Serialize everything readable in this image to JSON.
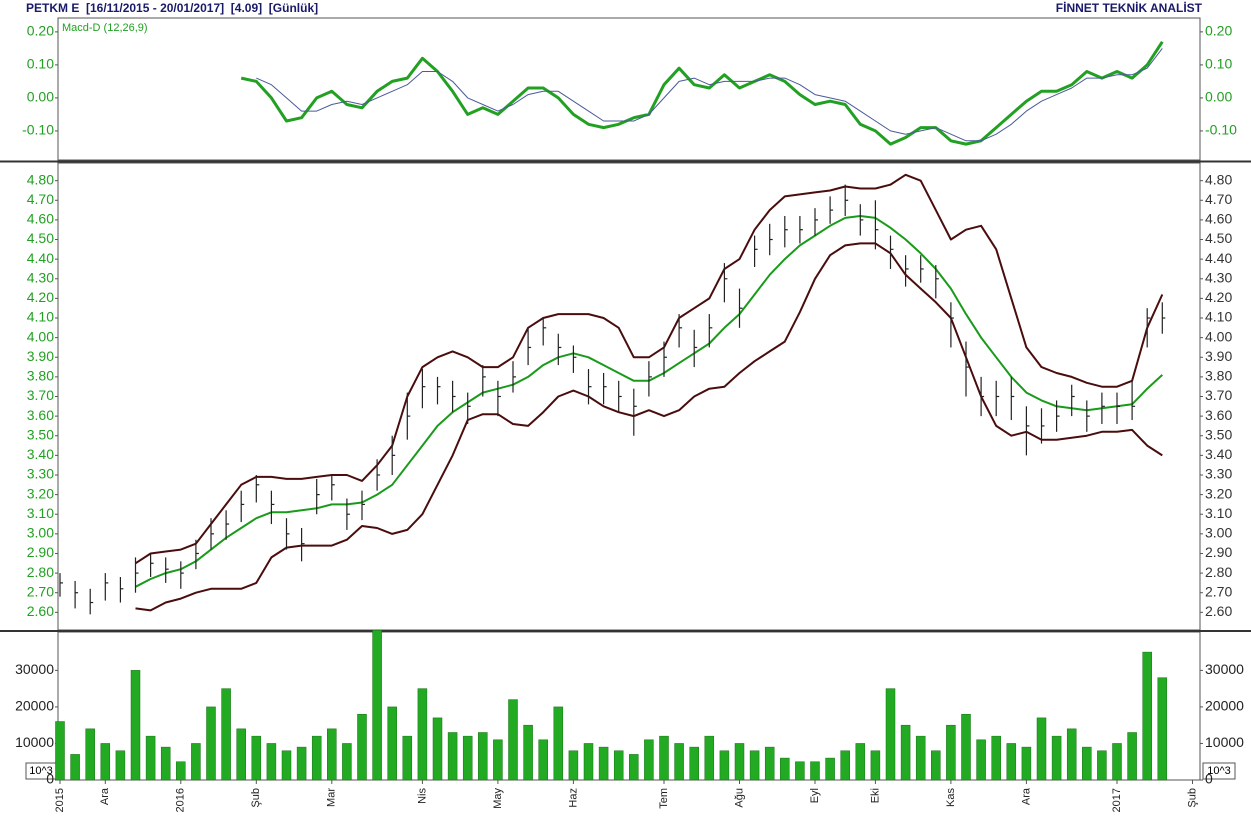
{
  "header": {
    "title": "PETKM E  [16/11/2015 - 20/01/2017]  [4.09]  [Günlük]",
    "source": "FİNNET TEKNİK ANALİST"
  },
  "chart_data": [
    {
      "type": "line",
      "series": [
        {
          "name": "Macd-D (12,26,9)",
          "color": "#22a022",
          "width": 3,
          "values": [
            null,
            null,
            null,
            null,
            null,
            null,
            null,
            null,
            null,
            null,
            null,
            null,
            0.06,
            0.05,
            0.0,
            -0.07,
            -0.06,
            0.0,
            0.02,
            -0.02,
            -0.03,
            0.02,
            0.05,
            0.06,
            0.12,
            0.08,
            0.02,
            -0.05,
            -0.03,
            -0.05,
            -0.01,
            0.03,
            0.03,
            0.0,
            -0.05,
            -0.08,
            -0.09,
            -0.08,
            -0.06,
            -0.05,
            0.04,
            0.09,
            0.04,
            0.03,
            0.07,
            0.03,
            0.05,
            0.07,
            0.05,
            0.01,
            -0.02,
            -0.01,
            -0.02,
            -0.08,
            -0.1,
            -0.14,
            -0.12,
            -0.09,
            -0.09,
            -0.13,
            -0.14,
            -0.13,
            -0.09,
            -0.05,
            -0.01,
            0.02,
            0.02,
            0.04,
            0.08,
            0.06,
            0.08,
            0.06,
            0.1,
            0.17,
            null,
            null
          ]
        },
        {
          "color": "#4a5a9a",
          "width": 1,
          "values": [
            null,
            null,
            null,
            null,
            null,
            null,
            null,
            null,
            null,
            null,
            null,
            null,
            null,
            0.06,
            0.04,
            0.0,
            -0.04,
            -0.04,
            -0.02,
            -0.01,
            -0.02,
            0.0,
            0.02,
            0.04,
            0.08,
            0.08,
            0.05,
            0.0,
            -0.02,
            -0.04,
            -0.02,
            0.01,
            0.02,
            0.02,
            -0.01,
            -0.04,
            -0.07,
            -0.07,
            -0.07,
            -0.05,
            0.0,
            0.05,
            0.06,
            0.04,
            0.05,
            0.05,
            0.05,
            0.06,
            0.06,
            0.04,
            0.01,
            0.0,
            -0.01,
            -0.04,
            -0.07,
            -0.1,
            -0.11,
            -0.1,
            -0.09,
            -0.11,
            -0.13,
            -0.13,
            -0.11,
            -0.08,
            -0.04,
            -0.01,
            0.01,
            0.03,
            0.06,
            0.06,
            0.07,
            0.07,
            0.09,
            0.15,
            null,
            null
          ]
        }
      ],
      "ylim": [
        -0.188,
        0.242
      ],
      "yticks": [
        {
          "value": 0.2,
          "label": "0.20"
        },
        {
          "value": 0.1,
          "label": "0.10"
        },
        {
          "value": 0,
          "label": "0.00"
        },
        {
          "value": -0.1,
          "label": "-0.10"
        }
      ]
    },
    {
      "type": "ohlc",
      "high": [
        2.8,
        2.76,
        2.72,
        2.8,
        2.78,
        2.88,
        2.9,
        2.88,
        2.86,
        2.97,
        3.08,
        3.12,
        3.22,
        3.3,
        3.22,
        3.08,
        3.03,
        3.28,
        3.3,
        3.18,
        3.22,
        3.38,
        3.5,
        3.72,
        3.84,
        3.8,
        3.78,
        3.72,
        3.86,
        3.78,
        3.88,
        4.05,
        4.1,
        4.02,
        3.96,
        3.84,
        3.82,
        3.78,
        3.74,
        3.88,
        3.98,
        4.12,
        4.04,
        4.12,
        4.38,
        4.25,
        4.52,
        4.58,
        4.62,
        4.62,
        4.66,
        4.72,
        4.78,
        4.68,
        4.7,
        4.52,
        4.42,
        4.42,
        4.37,
        4.18,
        3.98,
        3.8,
        3.78,
        3.8,
        3.65,
        3.64,
        3.68,
        3.76,
        3.68,
        3.72,
        3.72,
        3.78,
        4.15,
        4.18,
        null,
        null
      ],
      "low": [
        2.68,
        2.62,
        2.59,
        2.66,
        2.65,
        2.7,
        2.78,
        2.75,
        2.72,
        2.82,
        2.92,
        2.97,
        3.06,
        3.16,
        3.05,
        2.92,
        2.86,
        3.1,
        3.17,
        3.02,
        3.07,
        3.22,
        3.3,
        3.48,
        3.64,
        3.66,
        3.62,
        3.56,
        3.7,
        3.6,
        3.72,
        3.86,
        3.96,
        3.86,
        3.82,
        3.66,
        3.66,
        3.62,
        3.5,
        3.7,
        3.8,
        3.95,
        3.85,
        3.95,
        4.18,
        4.05,
        4.36,
        4.42,
        4.46,
        4.48,
        4.52,
        4.58,
        4.62,
        4.52,
        4.45,
        4.35,
        4.26,
        4.28,
        4.2,
        3.95,
        3.7,
        3.6,
        3.6,
        3.58,
        3.4,
        3.46,
        3.52,
        3.6,
        3.52,
        3.56,
        3.56,
        3.58,
        3.95,
        4.02,
        null,
        null
      ],
      "close": [
        2.75,
        2.7,
        2.65,
        2.75,
        2.72,
        2.8,
        2.85,
        2.82,
        2.8,
        2.9,
        3.0,
        3.05,
        3.15,
        3.25,
        3.15,
        3.0,
        2.95,
        3.2,
        3.25,
        3.1,
        3.15,
        3.3,
        3.4,
        3.6,
        3.75,
        3.75,
        3.7,
        3.65,
        3.8,
        3.7,
        3.8,
        3.95,
        4.05,
        3.95,
        3.9,
        3.75,
        3.75,
        3.7,
        3.65,
        3.8,
        3.9,
        4.05,
        3.95,
        4.05,
        4.3,
        4.15,
        4.45,
        4.5,
        4.55,
        4.55,
        4.6,
        4.65,
        4.7,
        4.6,
        4.55,
        4.45,
        4.35,
        4.35,
        4.3,
        4.1,
        3.85,
        3.7,
        3.7,
        3.7,
        3.55,
        3.55,
        3.6,
        3.7,
        3.6,
        3.65,
        3.65,
        3.65,
        4.1,
        4.1,
        null,
        null
      ],
      "color": "#222222",
      "series": [
        {
          "color": "#4a0d0d",
          "width": 2,
          "values": [
            null,
            null,
            null,
            null,
            null,
            2.85,
            2.9,
            2.91,
            2.92,
            2.95,
            3.05,
            3.15,
            3.25,
            3.29,
            3.29,
            3.28,
            3.28,
            3.29,
            3.3,
            3.3,
            3.27,
            3.35,
            3.45,
            3.7,
            3.85,
            3.9,
            3.93,
            3.9,
            3.85,
            3.85,
            3.9,
            4.05,
            4.1,
            4.12,
            4.12,
            4.12,
            4.1,
            4.05,
            3.9,
            3.9,
            3.95,
            4.1,
            4.15,
            4.2,
            4.35,
            4.4,
            4.55,
            4.65,
            4.72,
            4.73,
            4.74,
            4.75,
            4.77,
            4.76,
            4.76,
            4.78,
            4.83,
            4.8,
            4.65,
            4.5,
            4.55,
            4.57,
            4.45,
            4.2,
            3.95,
            3.85,
            3.82,
            3.8,
            3.77,
            3.75,
            3.75,
            3.78,
            4.05,
            4.22,
            null,
            null
          ]
        },
        {
          "color": "#1a9a1a",
          "width": 2,
          "values": [
            null,
            null,
            null,
            null,
            null,
            2.73,
            2.77,
            2.8,
            2.82,
            2.86,
            2.92,
            2.98,
            3.03,
            3.08,
            3.11,
            3.11,
            3.12,
            3.13,
            3.15,
            3.15,
            3.16,
            3.2,
            3.25,
            3.35,
            3.45,
            3.55,
            3.62,
            3.67,
            3.72,
            3.74,
            3.76,
            3.8,
            3.86,
            3.9,
            3.92,
            3.9,
            3.86,
            3.82,
            3.78,
            3.78,
            3.82,
            3.87,
            3.92,
            3.97,
            4.05,
            4.12,
            4.22,
            4.32,
            4.4,
            4.47,
            4.52,
            4.57,
            4.61,
            4.62,
            4.61,
            4.56,
            4.5,
            4.43,
            4.35,
            4.25,
            4.12,
            4.0,
            3.9,
            3.8,
            3.72,
            3.68,
            3.65,
            3.64,
            3.63,
            3.64,
            3.65,
            3.66,
            3.74,
            3.81,
            null,
            null
          ]
        },
        {
          "color": "#4a0d0d",
          "width": 2,
          "values": [
            null,
            null,
            null,
            null,
            null,
            2.62,
            2.61,
            2.65,
            2.67,
            2.7,
            2.72,
            2.72,
            2.72,
            2.75,
            2.88,
            2.93,
            2.94,
            2.94,
            2.94,
            2.97,
            3.04,
            3.03,
            3.0,
            3.02,
            3.1,
            3.25,
            3.4,
            3.58,
            3.61,
            3.61,
            3.56,
            3.55,
            3.62,
            3.7,
            3.73,
            3.7,
            3.65,
            3.62,
            3.6,
            3.63,
            3.6,
            3.63,
            3.7,
            3.74,
            3.75,
            3.82,
            3.88,
            3.93,
            3.98,
            4.13,
            4.3,
            4.42,
            4.47,
            4.48,
            4.48,
            4.43,
            4.32,
            4.25,
            4.18,
            4.1,
            3.9,
            3.7,
            3.55,
            3.5,
            3.52,
            3.48,
            3.48,
            3.49,
            3.5,
            3.52,
            3.52,
            3.53,
            3.45,
            3.4,
            null,
            null
          ]
        }
      ],
      "ylim": [
        2.51,
        4.89
      ],
      "yticks": [
        {
          "value": 4.8,
          "label": "4.80"
        },
        {
          "value": 4.7,
          "label": "4.70"
        },
        {
          "value": 4.6,
          "label": "4.60"
        },
        {
          "value": 4.5,
          "label": "4.50"
        },
        {
          "value": 4.4,
          "label": "4.40"
        },
        {
          "value": 4.3,
          "label": "4.30"
        },
        {
          "value": 4.2,
          "label": "4.20"
        },
        {
          "value": 4.1,
          "label": "4.10"
        },
        {
          "value": 4,
          "label": "4.00"
        },
        {
          "value": 3.9,
          "label": "3.90"
        },
        {
          "value": 3.8,
          "label": "3.80"
        },
        {
          "value": 3.7,
          "label": "3.70"
        },
        {
          "value": 3.6,
          "label": "3.60"
        },
        {
          "value": 3.5,
          "label": "3.50"
        },
        {
          "value": 3.4,
          "label": "3.40"
        },
        {
          "value": 3.3,
          "label": "3.30"
        },
        {
          "value": 3.2,
          "label": "3.20"
        },
        {
          "value": 3.1,
          "label": "3.10"
        },
        {
          "value": 3,
          "label": "3.00"
        },
        {
          "value": 2.9,
          "label": "2.90"
        },
        {
          "value": 2.8,
          "label": "2.80"
        },
        {
          "value": 2.7,
          "label": "2.70"
        },
        {
          "value": 2.6,
          "label": "2.60"
        }
      ]
    },
    {
      "type": "bar",
      "categories": [
        "2015",
        null,
        null,
        "Ara",
        null,
        null,
        null,
        null,
        "2016",
        null,
        null,
        null,
        null,
        "Şub",
        null,
        null,
        null,
        null,
        "Mar",
        null,
        null,
        null,
        null,
        null,
        "Nis",
        null,
        null,
        null,
        null,
        "May",
        null,
        null,
        null,
        null,
        "Haz",
        null,
        null,
        null,
        null,
        null,
        "Tem",
        null,
        null,
        null,
        null,
        "Ağu",
        null,
        null,
        null,
        null,
        "Eyl",
        null,
        null,
        null,
        "Eki",
        null,
        null,
        null,
        null,
        "Kas",
        null,
        null,
        null,
        null,
        "Ara",
        null,
        null,
        null,
        null,
        null,
        "2017",
        null,
        null,
        null,
        null,
        "Şub"
      ],
      "values": [
        16000,
        7000,
        14000,
        10000,
        8000,
        30000,
        12000,
        9000,
        5000,
        10000,
        20000,
        25000,
        14000,
        12000,
        10000,
        8000,
        9000,
        12000,
        14000,
        10000,
        18000,
        41000,
        20000,
        12000,
        25000,
        17000,
        13000,
        12000,
        13000,
        11000,
        22000,
        15000,
        11000,
        20000,
        8000,
        10000,
        9000,
        8000,
        7000,
        11000,
        12000,
        10000,
        9000,
        12000,
        8000,
        10000,
        8000,
        9000,
        6000,
        5000,
        5000,
        6000,
        8000,
        10000,
        8000,
        25000,
        15000,
        12000,
        8000,
        15000,
        18000,
        11000,
        12000,
        10000,
        9000,
        17000,
        12000,
        14000,
        9000,
        8000,
        10000,
        13000,
        35000,
        28000,
        null,
        null
      ],
      "color": "#22aa22",
      "unit_label": "10^3",
      "ylim": [
        0,
        40500
      ],
      "yticks": [
        0,
        10000,
        20000,
        30000
      ]
    }
  ]
}
